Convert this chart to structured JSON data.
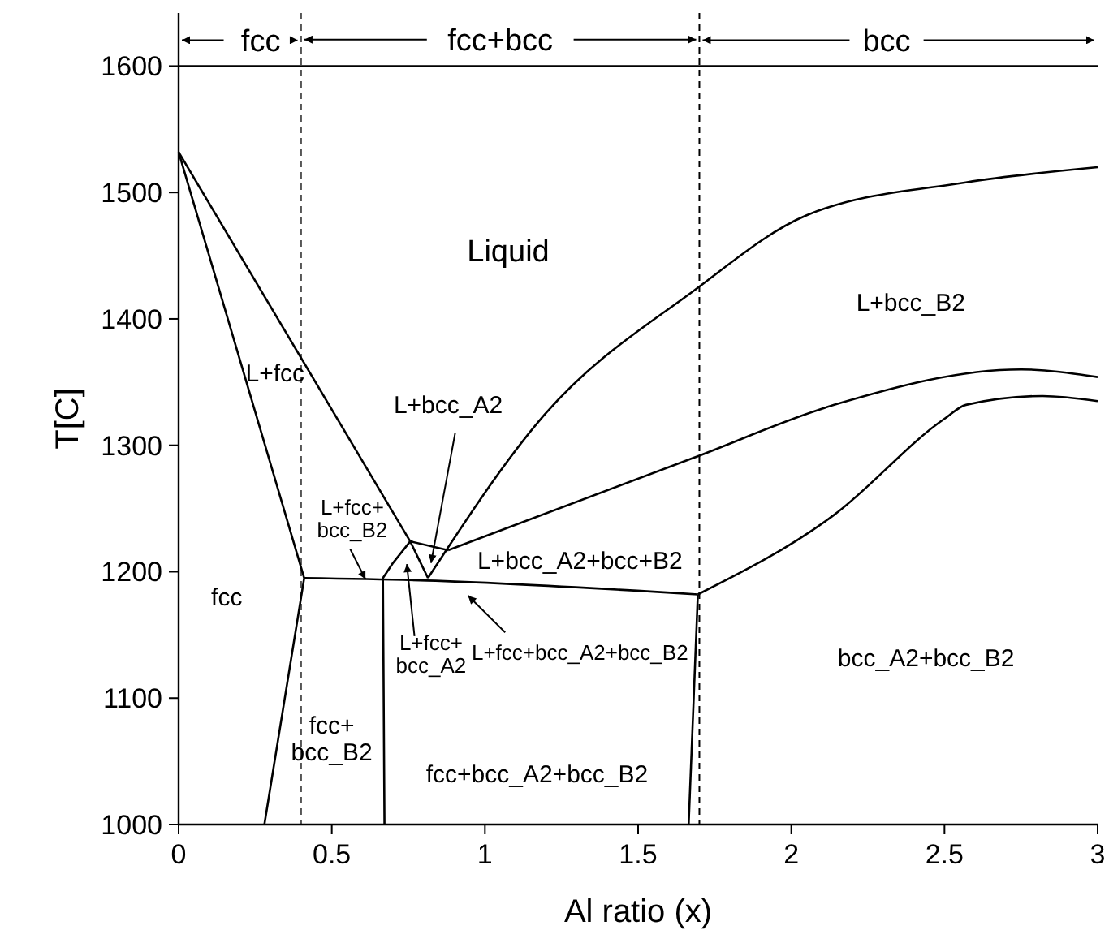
{
  "chart_data": {
    "type": "line",
    "xlabel": "Al ratio (x)",
    "ylabel": "T[C]",
    "xlim": [
      0,
      3
    ],
    "ylim": [
      1000,
      1642
    ],
    "xticks": [
      0,
      0.5,
      1,
      1.5,
      2,
      2.5,
      3
    ],
    "yticks": [
      1000,
      1100,
      1200,
      1300,
      1400,
      1500,
      1600
    ],
    "marker": "none",
    "line_style": "solid",
    "grid": false,
    "ref_lines": [
      {
        "axis": "x",
        "value": 0.4,
        "color": "#555555",
        "line_style": "dashed"
      },
      {
        "axis": "x",
        "value": 1.7,
        "color": "#000000",
        "line_style": "dashed"
      },
      {
        "axis": "y",
        "value": 1600,
        "color": "#000000",
        "line_style": "solid"
      }
    ],
    "series": [
      {
        "color": "#000000",
        "x": [
          0,
          0.756
        ],
        "values": [
          1532,
          1224
        ]
      },
      {
        "color": "#000000",
        "x": [
          0,
          0.41,
          0.28
        ],
        "values": [
          1532,
          1195,
          1000
        ]
      },
      {
        "color": "#000000",
        "x": [
          0.41,
          0.81,
          1.695
        ],
        "values": [
          1195,
          1193,
          1182
        ]
      },
      {
        "color": "#000000",
        "x": [
          0.672,
          0.667,
          0.7,
          0.756,
          0.814
        ],
        "values": [
          1000,
          1195,
          1207,
          1224,
          1195
        ]
      },
      {
        "color": "#000000",
        "x": [
          0.756,
          0.88
        ],
        "values": [
          1224,
          1217
        ]
      },
      {
        "color": "#000000",
        "x": [
          0.814,
          1.19,
          1.68,
          2.05,
          2.57,
          3
        ],
        "values": [
          1195,
          1323,
          1422,
          1482,
          1508,
          1520
        ]
      },
      {
        "color": "#000000",
        "x": [
          0.88,
          1.68,
          2.14,
          2.75,
          3
        ],
        "values": [
          1217,
          1290,
          1332,
          1360,
          1354
        ]
      },
      {
        "color": "#000000",
        "x": [
          1.695,
          2.14,
          2.5,
          2.57,
          2.82,
          3
        ],
        "values": [
          1182,
          1245,
          1321,
          1332,
          1339,
          1335
        ]
      },
      {
        "color": "#000000",
        "x": [
          1.695,
          1.665
        ],
        "values": [
          1182,
          1000
        ]
      }
    ],
    "annotations": [
      "Liquid",
      "L+fcc",
      {
        "text": "L+bcc_A2",
        "x": 0.824,
        "y": 1207
      },
      "L+bcc_B2",
      {
        "text": "L+fcc+\nbcc_B2",
        "x": 0.61,
        "y": 1194
      },
      "L+bcc_A2+bcc+B2",
      "fcc",
      "L+fcc+\nbcc_A2",
      "L+fcc+bcc_A2+bcc_B2",
      "bcc_A2+bcc_B2",
      "fcc+\nbcc_B2",
      "fcc+bcc_A2+bcc_B2",
      "fcc",
      {
        "text": "fcc+bcc",
        "x": 1.7,
        "y": 1621
      },
      "bcc"
    ]
  }
}
